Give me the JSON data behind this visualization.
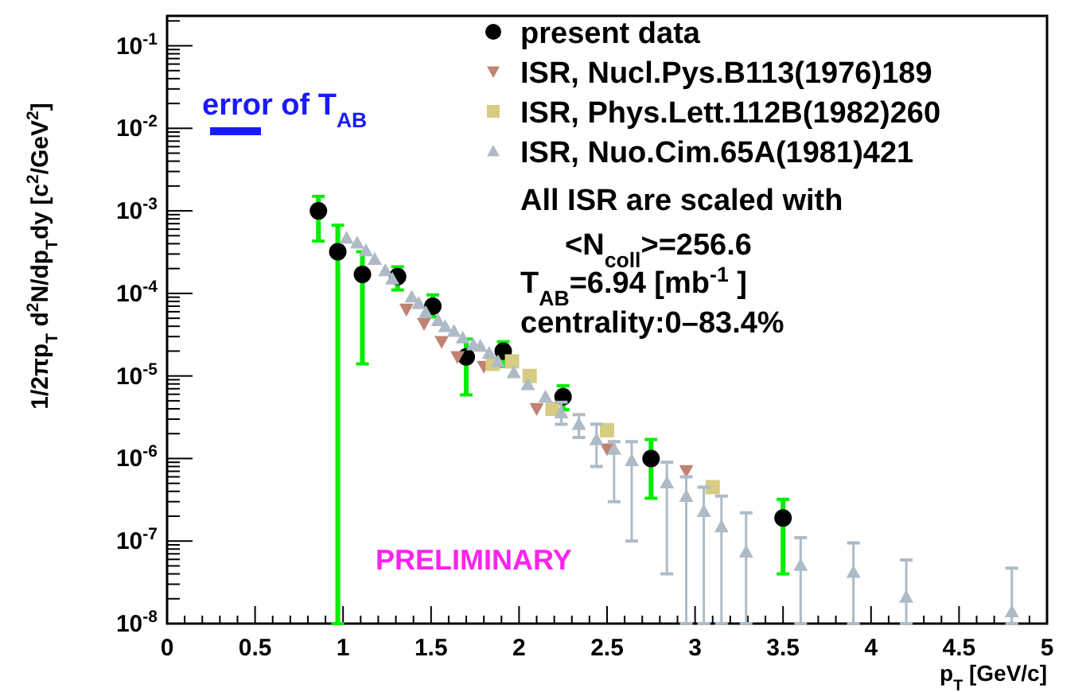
{
  "chart_data": {
    "type": "scatter",
    "xlabel": "p$_{T}$ [GeV/c]",
    "ylabel": "1/2πp$_{T}$ d$^{2}$N/dp$_{T}$dy [c$^{2}$/GeV$^{2}$]",
    "log": "y",
    "grid": false,
    "legend": "top right",
    "xlim": [
      0,
      5
    ],
    "xticks": [
      0,
      0.5,
      1,
      1.5,
      2,
      2.5,
      3,
      3.5,
      4,
      4.5,
      5
    ],
    "ylim": [
      1e-08,
      0.23
    ],
    "yticks": [
      {
        "value": 1e-08,
        "label": "10$^{-8}$"
      },
      {
        "value": 1e-07,
        "label": "10$^{-7}$"
      },
      {
        "value": 1e-06,
        "label": "10$^{-6}$"
      },
      {
        "value": 1e-05,
        "label": "10$^{-5}$"
      },
      {
        "value": 0.0001,
        "label": "10$^{-4}$"
      },
      {
        "value": 0.001,
        "label": "10$^{-3}$"
      },
      {
        "value": 0.01,
        "label": "10$^{-2}$"
      },
      {
        "value": 0.1,
        "label": "10$^{-1}$"
      }
    ],
    "series": [
      {
        "name": "present data",
        "color": "#000000",
        "marker": "circle",
        "x": [
          0.86,
          0.97,
          1.11,
          1.31,
          1.51,
          1.7,
          1.91,
          2.25,
          2.75,
          3.5
        ],
        "values": [
          0.001,
          0.00032,
          0.00017,
          0.00016,
          7e-05,
          1.7e-05,
          2e-05,
          5.6e-06,
          1e-06,
          1.9e-07
        ],
        "errors": [
          [
            0.00043,
            0.0015
          ],
          [
            1e-08,
            0.00067
          ],
          [
            1.4e-05,
            0.00032
          ],
          [
            0.00011,
            0.00021
          ],
          [
            5.2e-05,
            9.6e-05
          ],
          [
            5.9e-06,
            2.8e-05
          ],
          [
            1.3e-05,
            2.6e-05
          ],
          [
            3.9e-06,
            7.6e-06
          ],
          [
            3.3e-07,
            1.7e-06
          ],
          [
            4e-08,
            3.2e-07
          ]
        ]
      },
      {
        "name": "ISR, Nucl.Pys.B113(1976)189",
        "color": "#c08272",
        "marker": "triangle-down",
        "x": [
          1.36,
          1.46,
          1.56,
          1.65,
          1.8,
          2.1,
          2.5,
          2.95
        ],
        "values": [
          6.4e-05,
          4.3e-05,
          2.6e-05,
          1.7e-05,
          1.3e-05,
          4e-06,
          1.3e-06,
          7.1e-07
        ]
      },
      {
        "name": "ISR, Phys.Lett.112B(1982)260",
        "color": "#d6cc82",
        "marker": "square",
        "x": [
          1.85,
          1.96,
          2.06,
          2.19,
          2.5,
          3.1
        ],
        "values": [
          1.4e-05,
          1.5e-05,
          1e-05,
          4e-06,
          2.2e-06,
          4.5e-07
        ]
      },
      {
        "name": "ISR, Nuo.Cim.65A(1981)421",
        "color": "#aebbc6",
        "marker": "triangle",
        "x": [
          1.02,
          1.08,
          1.13,
          1.18,
          1.24,
          1.28,
          1.39,
          1.43,
          1.47,
          1.54,
          1.58,
          1.63,
          1.68,
          1.74,
          1.78,
          1.83,
          1.88,
          1.97,
          2.05,
          2.15,
          2.24,
          2.34,
          2.44,
          2.54,
          2.64,
          2.84,
          2.95,
          3.05,
          3.15,
          3.29,
          3.6,
          3.9,
          4.2,
          4.8
        ],
        "values": [
          0.00047,
          0.00041,
          0.00033,
          0.00026,
          0.00019,
          0.00015,
          9.1e-05,
          7.6e-05,
          5.9e-05,
          4.7e-05,
          4e-05,
          3.5e-05,
          2.9e-05,
          2.4e-05,
          2.3e-05,
          1.9e-05,
          1.5e-05,
          1.1e-05,
          7.9e-06,
          5.6e-06,
          3.6e-06,
          2.6e-06,
          1.7e-06,
          1.3e-06,
          9.5e-07,
          5.1e-07,
          3.5e-07,
          2.3e-07,
          1.5e-07,
          7.4e-08,
          5.1e-08,
          4.2e-08,
          2.1e-08,
          1.4e-08
        ],
        "errors": [
          null,
          null,
          null,
          null,
          null,
          null,
          null,
          null,
          null,
          null,
          null,
          null,
          null,
          null,
          null,
          null,
          null,
          null,
          null,
          null,
          [
            2.6e-06,
            4.8e-06
          ],
          [
            1.8e-06,
            3.4e-06
          ],
          [
            8e-07,
            2.6e-06
          ],
          [
            3e-07,
            1.6e-06
          ],
          [
            1e-07,
            1.6e-06
          ],
          [
            4e-08,
            9e-07
          ],
          [
            1e-08,
            6e-07
          ],
          [
            1e-08,
            4.5e-07
          ],
          [
            1e-08,
            3.5e-07
          ],
          [
            1e-08,
            2.2e-07
          ],
          [
            1e-08,
            1.1e-07
          ],
          [
            1e-08,
            9.5e-08
          ],
          [
            1e-08,
            5.9e-08
          ],
          [
            1e-08,
            4.7e-08
          ]
        ]
      }
    ],
    "annotations": [
      "error of T$_{AB}$",
      "All ISR are scaled with",
      "<N$_{coll}$>=256.6",
      "T$_{AB}$=6.94 [mb$^{-1}$ ]",
      "centrality:0–83.4%",
      "PRELIMINARY"
    ]
  }
}
